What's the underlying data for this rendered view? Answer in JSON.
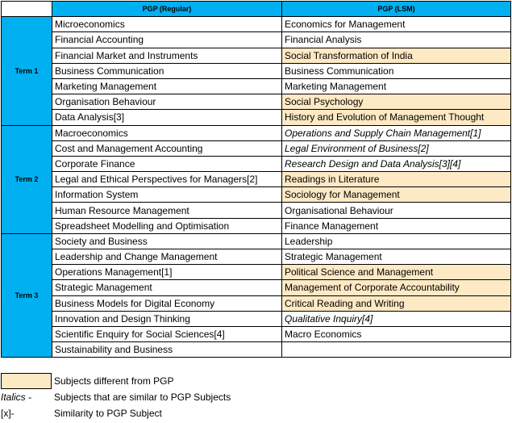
{
  "header": {
    "regular": "PGP (Regular)",
    "lsm": "PGP (LSM)"
  },
  "terms": [
    {
      "label": "Term 1",
      "rows": [
        {
          "regular": "Microeconomics",
          "lsm": "Economics for Management"
        },
        {
          "regular": "Financial Accounting",
          "lsm": "Financial Analysis"
        },
        {
          "regular": "Financial Market and Instruments",
          "lsm": "Social Transformation of India",
          "highlight": true
        },
        {
          "regular": "Business Communication",
          "lsm": "Business Communication"
        },
        {
          "regular": "Marketing Management",
          "lsm": "Marketing Management"
        },
        {
          "regular": "Organisation Behaviour",
          "lsm": "Social Psychology",
          "highlight": true
        },
        {
          "regular": "Data Analysis[3]",
          "lsm": "History and Evolution of Management Thought",
          "highlight": true
        }
      ]
    },
    {
      "label": "Term 2",
      "rows": [
        {
          "regular": "Macroeconomics",
          "lsm": "Operations and Supply Chain Management[1]",
          "italic": true
        },
        {
          "regular": "Cost and Management Accounting",
          "lsm": "Legal Environment of Business[2]",
          "italic": true
        },
        {
          "regular": "Corporate Finance",
          "lsm": "Research Design and Data Analysis[3][4]",
          "italic": true
        },
        {
          "regular": "Legal and Ethical Perspectives for Managers[2]",
          "lsm": "Readings in Literature",
          "highlight": true
        },
        {
          "regular": "Information System",
          "lsm": "Sociology for Management",
          "highlight": true
        },
        {
          "regular": "Human Resource Management",
          "lsm": "Organisational Behaviour"
        },
        {
          "regular": "Spreadsheet Modelling and Optimisation",
          "lsm": "Finance Management"
        }
      ]
    },
    {
      "label": "Term 3",
      "rows": [
        {
          "regular": "Society and Business",
          "lsm": "Leadership"
        },
        {
          "regular": "Leadership and Change Management",
          "lsm": "Strategic Management"
        },
        {
          "regular": "Operations Management[1]",
          "lsm": "Political Science and Management",
          "highlight": true
        },
        {
          "regular": "Strategic Management",
          "lsm": "Management of Corporate Accountability",
          "highlight": true
        },
        {
          "regular": "Business Models for Digital Economy",
          "lsm": "Critical Reading and Writing",
          "highlight": true
        },
        {
          "regular": "Innovation and Design Thinking",
          "lsm": "Qualitative Inquiry[4]",
          "italic": true
        },
        {
          "regular": "Scientific Enquiry for Social Sciences[4]",
          "lsm": "Macro Economics"
        },
        {
          "regular": "Sustainability and Business",
          "lsm": null
        }
      ]
    }
  ],
  "legend": [
    {
      "key": null,
      "text": "Subjects different from PGP"
    },
    {
      "key": "Italics -",
      "text": "Subjects that are similar to PGP Subjects"
    },
    {
      "key": "[x]-",
      "text": "Similarity to PGP Subject"
    }
  ]
}
